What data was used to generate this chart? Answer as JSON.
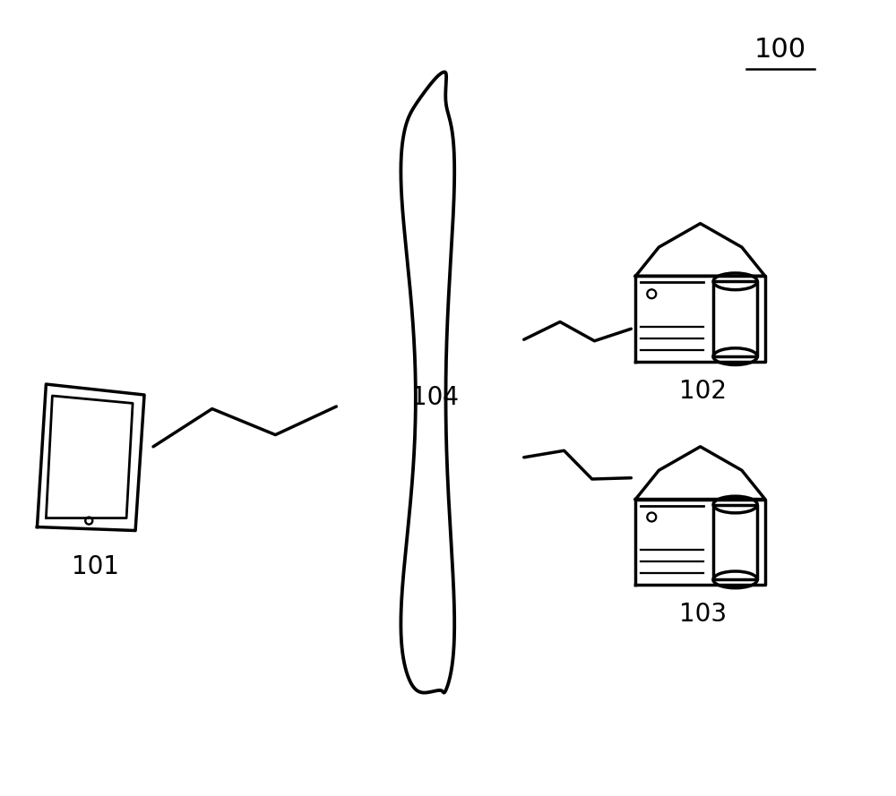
{
  "background_color": "#ffffff",
  "label_100": "100",
  "label_101": "101",
  "label_102": "102",
  "label_103": "103",
  "label_104": "104",
  "label_fontsize": 20,
  "line_color": "#000000",
  "line_width": 2.5,
  "fig_width": 10.0,
  "fig_height": 8.89
}
